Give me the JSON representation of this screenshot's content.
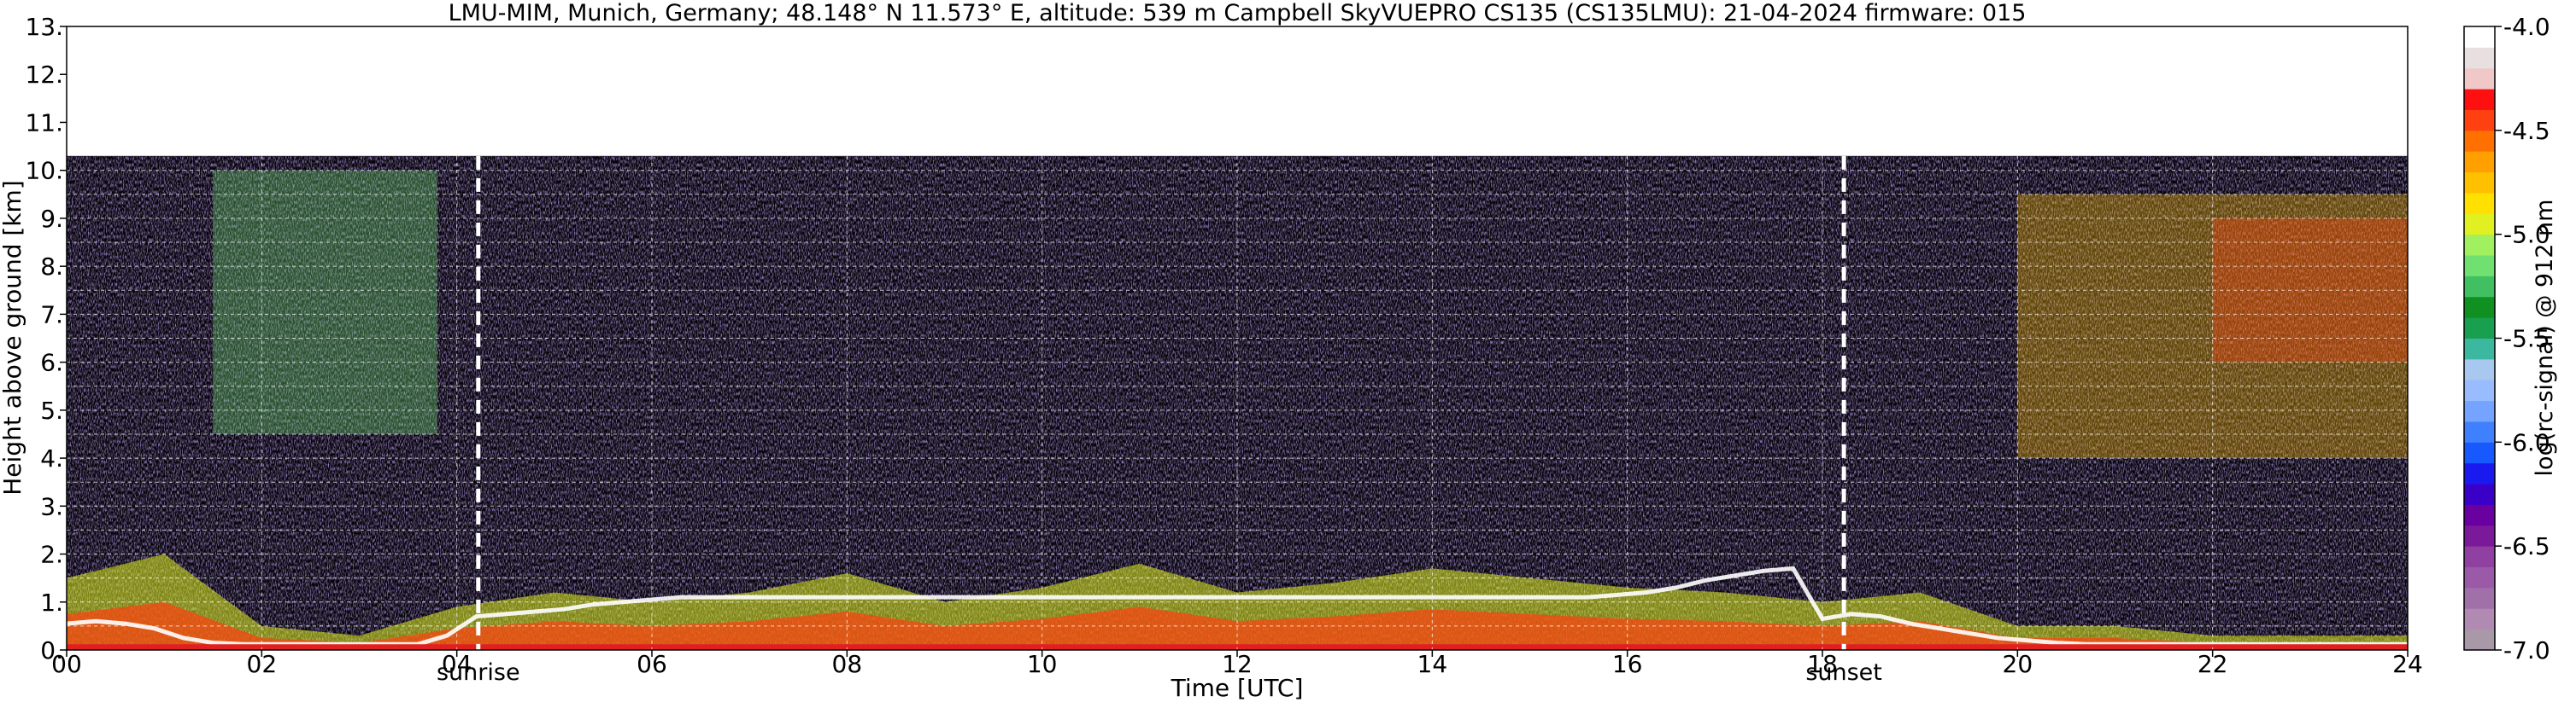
{
  "chart_data": {
    "type": "heatmap",
    "title": "LMU-MIM, Munich, Germany; 48.148° N 11.573° E, altitude: 539 m    Campbell SkyVUEPRO CS135 (CS135LMU): 21-04-2024    firmware: 015",
    "xlabel": "Time [UTC]",
    "ylabel": "Height above ground [km]",
    "colorbar_label": "log(rc-signal) @ 912 nm",
    "xlim": [
      0,
      24
    ],
    "ylim": [
      0,
      13
    ],
    "x_ticks": [
      0,
      2,
      4,
      6,
      8,
      10,
      12,
      14,
      16,
      18,
      20,
      22,
      24
    ],
    "x_tick_labels": [
      "00",
      "02",
      "04",
      "06",
      "08",
      "10",
      "12",
      "14",
      "16",
      "18",
      "20",
      "22",
      "24"
    ],
    "y_ticks": [
      0,
      1,
      2,
      3,
      4,
      5,
      6,
      7,
      8,
      9,
      10,
      11,
      12,
      13
    ],
    "y_tick_labels": [
      "0.",
      "1.",
      "2.",
      "3.",
      "4.",
      "5.",
      "6.",
      "7.",
      "8.",
      "9.",
      "10.",
      "11.",
      "12.",
      "13."
    ],
    "y_grid": [
      0.5,
      1,
      1.5,
      2,
      2.5,
      3,
      3.5,
      4,
      4.5,
      5,
      5.5,
      6,
      6.5,
      7,
      7.5,
      8,
      8.5,
      9,
      9.5,
      10
    ],
    "x_grid": [
      2,
      4,
      6,
      8,
      10,
      12,
      14,
      16,
      18,
      20,
      22
    ],
    "grid": true,
    "data_top_km": 10.3,
    "colorbar": {
      "vmin": -7.0,
      "vmax": -4.0,
      "ticks": [
        -7.0,
        -6.5,
        -6.0,
        -5.5,
        -5.0,
        -4.5,
        -4.0
      ],
      "tick_labels": [
        "-7.0",
        "-6.5",
        "-6.0",
        "-5.5",
        "-5.0",
        "-4.5",
        "-4.0"
      ],
      "colors": [
        "#a898a8",
        "#b08ab0",
        "#a070a8",
        "#9a5aa8",
        "#8f40a0",
        "#7a1a9a",
        "#6a00a0",
        "#3a00c8",
        "#1a1af0",
        "#1858ff",
        "#3f80ff",
        "#74a4ff",
        "#98bcff",
        "#a8c8f0",
        "#3cb8a0",
        "#18a050",
        "#109020",
        "#40c060",
        "#70e070",
        "#a0f060",
        "#e0f020",
        "#ffe000",
        "#ffc000",
        "#ffa000",
        "#ff7000",
        "#ff4010",
        "#ff1010",
        "#f0c8c8",
        "#e8e0e0",
        "#ffffff"
      ]
    },
    "events": [
      {
        "label": "sunrise",
        "time": 4.22
      },
      {
        "label": "sunset",
        "time": 18.22
      }
    ],
    "cloud_base_layers": [
      {
        "x": [
          0.0,
          0.3,
          0.6,
          0.9,
          1.2,
          1.5,
          1.8,
          2.1,
          2.4,
          2.7,
          3.0,
          3.3,
          3.6,
          3.9,
          4.2,
          4.5,
          4.8,
          5.1,
          5.4,
          5.7,
          6.0,
          6.3,
          6.6,
          6.9,
          7.2,
          7.5,
          7.8,
          8.1,
          8.4,
          8.7,
          9.0,
          9.3,
          9.6,
          9.9,
          10.2,
          10.5,
          10.8,
          11.1,
          11.4,
          11.7,
          12.0,
          12.3,
          12.6,
          12.9,
          13.2,
          13.5,
          13.8,
          14.1,
          14.4,
          14.7,
          15.0,
          15.3,
          15.6,
          15.9,
          16.2,
          16.5,
          16.8,
          17.1,
          17.4,
          17.7,
          18.0,
          18.3,
          18.6,
          18.9,
          19.2,
          19.5,
          19.8,
          20.1,
          20.4,
          20.7,
          21.0,
          21.3,
          21.6,
          21.9,
          22.2,
          22.5,
          22.8,
          23.1,
          23.4,
          23.7,
          24.0
        ],
        "y": [
          0.55,
          0.6,
          0.55,
          0.45,
          0.25,
          0.15,
          0.12,
          0.12,
          0.12,
          0.12,
          0.12,
          0.12,
          0.12,
          0.3,
          0.7,
          0.75,
          0.8,
          0.85,
          0.95,
          1.0,
          1.05,
          1.1,
          1.1,
          1.1,
          1.1,
          1.1,
          1.1,
          1.1,
          1.1,
          1.1,
          1.1,
          1.1,
          1.1,
          1.1,
          1.1,
          1.1,
          1.1,
          1.1,
          1.1,
          1.1,
          1.1,
          1.1,
          1.1,
          1.1,
          1.1,
          1.1,
          1.1,
          1.1,
          1.1,
          1.1,
          1.1,
          1.1,
          1.1,
          1.15,
          1.2,
          1.3,
          1.45,
          1.55,
          1.65,
          1.7,
          0.65,
          0.75,
          0.7,
          0.55,
          0.45,
          0.35,
          0.25,
          0.2,
          0.15,
          0.12,
          0.12,
          0.12,
          0.12,
          0.12,
          0.12,
          0.12,
          0.12,
          0.12,
          0.12,
          0.12,
          0.12
        ]
      }
    ],
    "aerosol_layer_km": [
      {
        "x": [
          0.0,
          1.0,
          2.0,
          3.0,
          4.0,
          5.0,
          6.0,
          7.0,
          8.0,
          9.0,
          10.0,
          11.0,
          12.0,
          13.0,
          14.0,
          15.0,
          16.0,
          17.0,
          18.0,
          19.0,
          20.0,
          21.0,
          22.0,
          23.0,
          24.0
        ],
        "top": [
          1.5,
          2.0,
          0.5,
          0.3,
          0.9,
          1.2,
          1.0,
          1.2,
          1.6,
          1.0,
          1.3,
          1.8,
          1.2,
          1.4,
          1.7,
          1.5,
          1.3,
          1.2,
          1.0,
          1.2,
          0.5,
          0.5,
          0.3,
          0.3,
          0.3
        ]
      }
    ],
    "high_signal_regions": [
      {
        "label": "",
        "t0": 1.5,
        "t1": 3.8,
        "h0": 4.5,
        "h1": 10.0,
        "level": -5.2
      },
      {
        "label": "",
        "t0": 20.0,
        "t1": 24.0,
        "h0": 4.0,
        "h1": 9.5,
        "level": -4.8
      },
      {
        "label": "",
        "t0": 22.0,
        "t1": 24.0,
        "h0": 6.0,
        "h1": 9.0,
        "level": -4.5
      }
    ]
  }
}
